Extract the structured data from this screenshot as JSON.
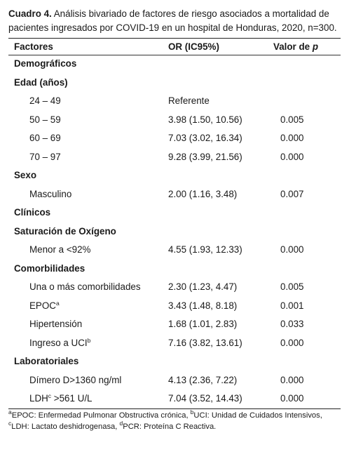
{
  "caption": {
    "label": "Cuadro 4.",
    "text": " Análisis bivariado de factores de riesgo asociados a mortalidad de pacientes ingresados por COVID-19 en un hospital de Honduras, 2020, n=300."
  },
  "table": {
    "headers": {
      "factor": "Factores",
      "or": "OR (IC95%)",
      "p_prefix": "Valor de ",
      "p_italic": "p"
    },
    "rows": [
      {
        "type": "section",
        "label": "Demográficos"
      },
      {
        "type": "section",
        "label": "Edad (años)"
      },
      {
        "type": "sub",
        "label": "24 – 49",
        "or": "Referente",
        "p": ""
      },
      {
        "type": "sub",
        "label": "50 – 59",
        "or": "3.98 (1.50, 10.56)",
        "p": "0.005"
      },
      {
        "type": "sub",
        "label": "60 – 69",
        "or": "7.03 (3.02, 16.34)",
        "p": "0.000"
      },
      {
        "type": "sub",
        "label": "70 – 97",
        "or": "9.28 (3.99, 21.56)",
        "p": "0.000"
      },
      {
        "type": "section",
        "label": "Sexo"
      },
      {
        "type": "sub",
        "label": "Masculino",
        "or": "2.00 (1.16, 3.48)",
        "p": "0.007"
      },
      {
        "type": "section",
        "label": "Clínicos"
      },
      {
        "type": "section",
        "label": "Saturación de Oxígeno"
      },
      {
        "type": "sub",
        "label": "Menor a <92%",
        "or": "4.55 (1.93, 12.33)",
        "p": "0.000"
      },
      {
        "type": "section",
        "label": "Comorbilidades"
      },
      {
        "type": "sub",
        "label": "Una o más comorbilidades",
        "or": "2.30 (1.23, 4.47)",
        "p": "0.005"
      },
      {
        "type": "sub",
        "label": "EPOC",
        "sup": "a",
        "or": "3.43 (1.48, 8.18)",
        "p": "0.001"
      },
      {
        "type": "sub",
        "label": "Hipertensión",
        "or": "1.68 (1.01, 2.83)",
        "p": "0.033"
      },
      {
        "type": "sub",
        "label": "Ingreso a UCI",
        "sup": "b",
        "or": "7.16 (3.82, 13.61)",
        "p": "0.000"
      },
      {
        "type": "section",
        "label": "Laboratoriales"
      },
      {
        "type": "sub",
        "label": "Dímero D>1360 ng/ml",
        "or": "4.13 (2.36, 7.22)",
        "p": "0.000"
      },
      {
        "type": "sub",
        "label": "LDH",
        "sup": "c",
        "suffix": " >561 U/L",
        "or": "7.04 (3.52, 14.43)",
        "p": "0.000"
      }
    ]
  },
  "footnote": {
    "a_mark": "a",
    "a_text": "EPOC: Enfermedad Pulmonar Obstructiva crónica, ",
    "b_mark": "b",
    "b_text": "UCI: Unidad de Cuidados Intensivos, ",
    "c_mark": "c",
    "c_text": "LDH: Lactato deshidrogenasa, ",
    "d_mark": "d",
    "d_text": "PCR: Proteína C Reactiva."
  }
}
